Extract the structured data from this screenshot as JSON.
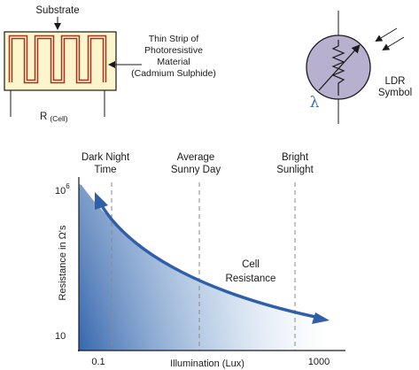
{
  "substrate_diagram": {
    "substrate_label": "Substrate",
    "strip_label": [
      "Thin Strip of",
      "Photoresistive",
      "Material",
      "(Cadmium Sulphide)"
    ],
    "r_label_main": "R",
    "r_label_sub": "(Cell)",
    "colors": {
      "substrate_fill": "#fdf6cc",
      "strip": "#9b3b24"
    }
  },
  "ldr_symbol": {
    "label": [
      "LDR",
      "Symbol"
    ],
    "lambda": "λ",
    "colors": {
      "body_fill": "#b8b0cf",
      "lambda": "#3b6fb6"
    }
  },
  "graph": {
    "markers": [
      {
        "lines": [
          "Dark Night",
          "Time"
        ]
      },
      {
        "lines": [
          "Average",
          "Sunny Day"
        ]
      },
      {
        "lines": [
          "Bright",
          "Sunlight"
        ]
      }
    ],
    "y_axis_label": "Resistance in Ω's",
    "y_top_tick": {
      "base": "10",
      "exp": "6"
    },
    "y_bottom_tick": "10",
    "x_left_tick": "0.1",
    "x_right_tick": "1000",
    "x_axis_label": "Illumination (Lux)",
    "curve_label": [
      "Cell",
      "Resistance"
    ],
    "colors": {
      "curve": "#2f5fa8",
      "fill_dark": "#2b5ea8",
      "fill_light": "#ffffff"
    }
  }
}
